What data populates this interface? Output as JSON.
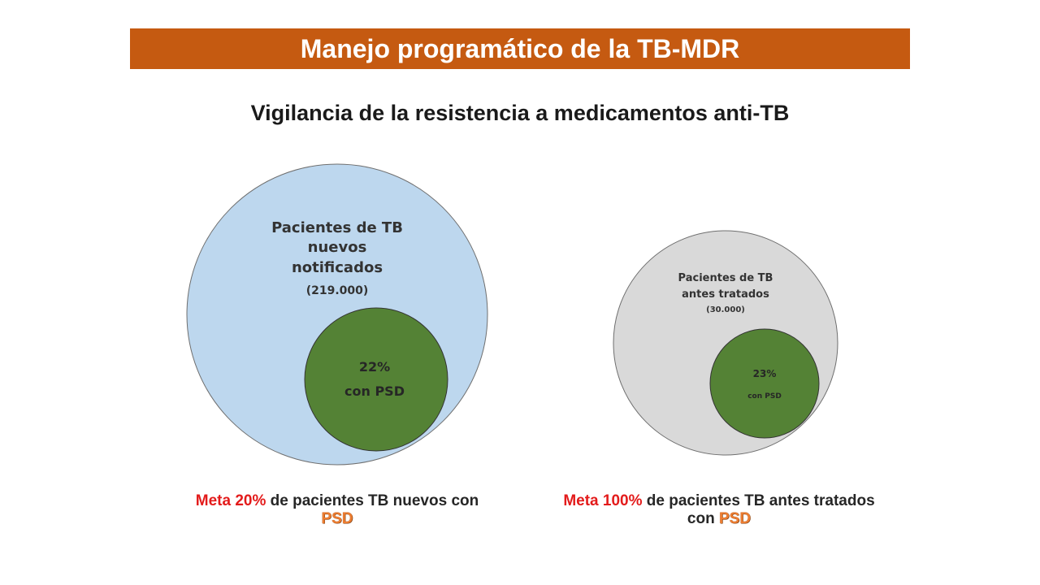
{
  "header": {
    "title": "Manejo programático de la TB-MDR",
    "accent_color": "#c55a11"
  },
  "subtitle": "Vigilancia de la resistencia a medicamentos anti-TB",
  "left_diagram": {
    "outer_label_lines": [
      "Pacientes de TB",
      "nuevos",
      "notificados"
    ],
    "outer_count": "(219.000)",
    "outer_color": "#bdd7ee",
    "inner_percent": "22%",
    "inner_label": "con PSD",
    "inner_color": "#548235"
  },
  "right_diagram": {
    "outer_label_lines": [
      "Pacientes de TB",
      "antes tratados"
    ],
    "outer_count": "(30.000)",
    "outer_color": "#d9d9d9",
    "inner_percent": "23%",
    "inner_label": "con PSD",
    "inner_color": "#548235"
  },
  "captions": {
    "left": {
      "meta": "Meta 20%",
      "text": " de pacientes TB nuevos con ",
      "psd": "PSD"
    },
    "right": {
      "meta": "Meta 100%",
      "text": " de pacientes TB antes tratados con ",
      "psd": "PSD"
    }
  }
}
